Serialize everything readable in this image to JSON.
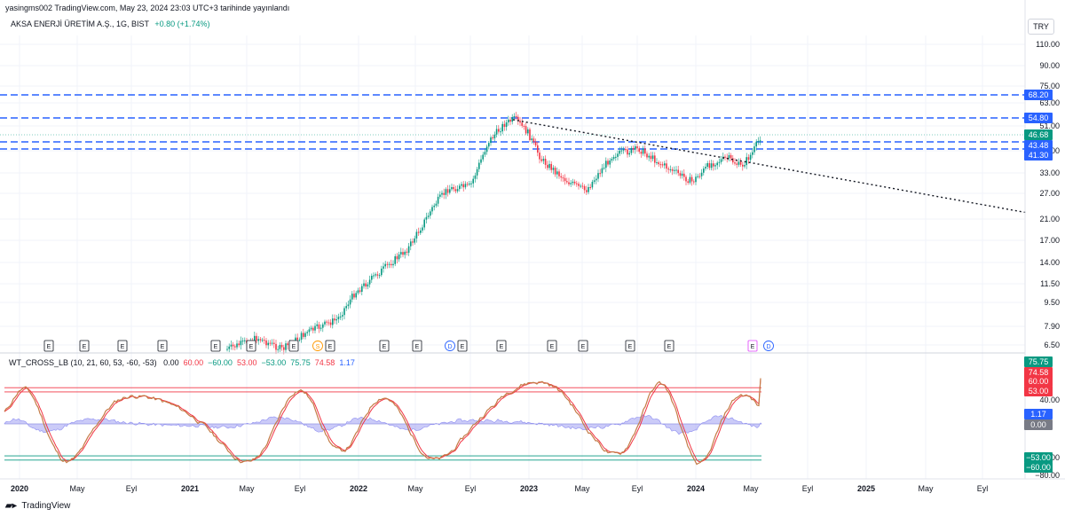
{
  "header": {
    "published_line": "yasingms002 TradingView.com, May 23, 2024 23:03 UTC+3 tarihinde yayınlandı",
    "symbol": "AKSA ENERJİ ÜRETİM A.Ş., 1G, BIST",
    "change": "+0.80 (+1.74%)",
    "currency_button": "TRY"
  },
  "price_axis": {
    "ticks": [
      "110.00",
      "90.00",
      "75.00",
      "63.00",
      "51.00",
      "40.00",
      "33.00",
      "27.00",
      "21.00",
      "17.00",
      "14.00",
      "11.50",
      "9.50",
      "7.90",
      "6.50"
    ],
    "tags": [
      {
        "label": "68.20",
        "color": "#2962ff"
      },
      {
        "label": "54.80",
        "color": "#2962ff"
      },
      {
        "label": "46.68",
        "color": "#089981"
      },
      {
        "label": "43.48",
        "color": "#2962ff"
      },
      {
        "label": "41.30",
        "color": "#2962ff"
      }
    ]
  },
  "event_markers": [
    {
      "label": "E",
      "type": "earnings"
    },
    {
      "label": "E",
      "type": "earnings"
    },
    {
      "label": "E",
      "type": "earnings"
    },
    {
      "label": "E",
      "type": "earnings"
    },
    {
      "label": "E",
      "type": "earnings"
    },
    {
      "label": "E",
      "type": "earnings"
    },
    {
      "label": "E",
      "type": "earnings"
    },
    {
      "label": "S",
      "type": "split"
    },
    {
      "label": "E",
      "type": "earnings"
    },
    {
      "label": "E",
      "type": "earnings"
    },
    {
      "label": "E",
      "type": "earnings"
    },
    {
      "label": "D",
      "type": "dividend"
    },
    {
      "label": "E",
      "type": "earnings"
    },
    {
      "label": "E",
      "type": "earnings"
    },
    {
      "label": "E",
      "type": "earnings"
    },
    {
      "label": "E",
      "type": "earnings"
    },
    {
      "label": "E",
      "type": "earnings"
    },
    {
      "label": "E",
      "type": "earnings"
    },
    {
      "label": "E",
      "type": "earnings"
    },
    {
      "label": "D",
      "type": "dividend"
    }
  ],
  "indicator": {
    "name": "WT_CROSS_LB (10, 21, 60, 53, -60, -53)",
    "values": [
      {
        "text": "0.00",
        "color": "#131722"
      },
      {
        "text": "60.00",
        "color": "#f23645"
      },
      {
        "text": "−60.00",
        "color": "#089981"
      },
      {
        "text": "53.00",
        "color": "#f23645"
      },
      {
        "text": "−53.00",
        "color": "#089981"
      },
      {
        "text": "75.75",
        "color": "#089981"
      },
      {
        "text": "74.58",
        "color": "#f23645"
      },
      {
        "text": "1.17",
        "color": "#2962ff"
      }
    ],
    "axis_ticks": [
      "40.00",
      "−40.00",
      "−80.00"
    ],
    "tags": [
      {
        "label": "75.75",
        "color": "#089981"
      },
      {
        "label": "74.58",
        "color": "#f23645"
      },
      {
        "label": "60.00",
        "color": "#f23645"
      },
      {
        "label": "53.00",
        "color": "#f23645"
      },
      {
        "label": "1.17",
        "color": "#2962ff"
      },
      {
        "label": "0.00",
        "color": "#787b86"
      },
      {
        "label": "−53.00",
        "color": "#089981"
      },
      {
        "label": "−60.00",
        "color": "#089981"
      }
    ]
  },
  "time_axis": {
    "labels": [
      "2020",
      "May",
      "Eyl",
      "2021",
      "May",
      "Eyl",
      "2022",
      "May",
      "Eyl",
      "2023",
      "May",
      "Eyl",
      "2024",
      "May",
      "Eyl",
      "2025",
      "May",
      "Eyl"
    ]
  },
  "footer": {
    "brand": "TradingView",
    "logo": "tv-logo-icon"
  },
  "colors": {
    "up": "#089981",
    "down": "#f23645",
    "level_line": "#2962ff",
    "wt1": "#c47b46",
    "wt2": "#8c8cf0"
  }
}
